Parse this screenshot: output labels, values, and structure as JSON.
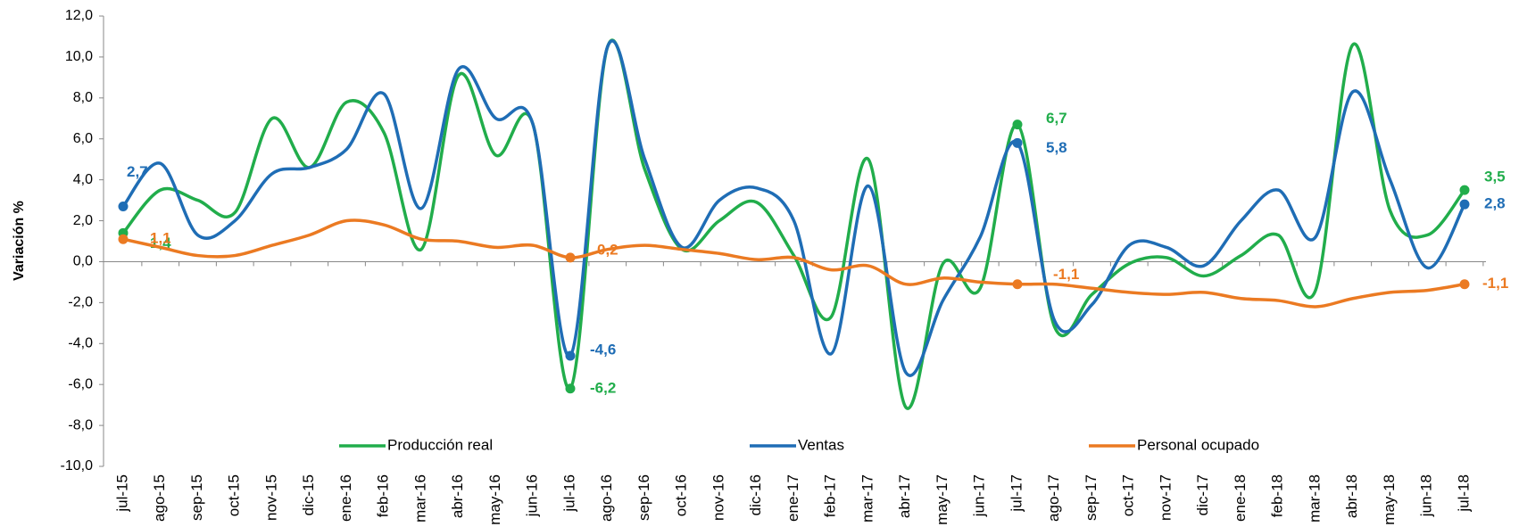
{
  "chart_data": {
    "type": "line",
    "y_label": "Variación %",
    "categories": [
      "jul-15",
      "ago-15",
      "sep-15",
      "oct-15",
      "nov-15",
      "dic-15",
      "ene-16",
      "feb-16",
      "mar-16",
      "abr-16",
      "may-16",
      "jun-16",
      "jul-16",
      "ago-16",
      "sep-16",
      "oct-16",
      "nov-16",
      "dic-16",
      "ene-17",
      "feb-17",
      "mar-17",
      "abr-17",
      "may-17",
      "jun-17",
      "jul-17",
      "ago-17",
      "sep-17",
      "oct-17",
      "nov-17",
      "dic-17",
      "ene-18",
      "feb-18",
      "mar-18",
      "abr-18",
      "may-18",
      "jun-18",
      "jul-18"
    ],
    "series": [
      {
        "name": "Producción real",
        "color": "#21ad4b",
        "values": [
          1.4,
          3.5,
          3.0,
          2.4,
          7.0,
          4.6,
          7.8,
          6.3,
          0.6,
          9.1,
          5.2,
          6.7,
          -6.2,
          10.5,
          4.5,
          0.6,
          2.0,
          2.9,
          0.3,
          -2.7,
          5.0,
          -7.1,
          -0.1,
          -1.3,
          6.7,
          -3.2,
          -1.6,
          -0.1,
          0.2,
          -0.7,
          0.3,
          1.3,
          -1.4,
          10.6,
          2.5,
          1.3,
          3.5
        ],
        "value_labels": [
          "1,4",
          null,
          null,
          null,
          null,
          null,
          null,
          null,
          null,
          null,
          null,
          null,
          "-6,2",
          null,
          null,
          null,
          null,
          null,
          null,
          null,
          null,
          null,
          null,
          null,
          "6,7",
          null,
          null,
          null,
          null,
          null,
          null,
          null,
          null,
          null,
          null,
          null,
          "3,5"
        ]
      },
      {
        "name": "Ventas",
        "color": "#1f6db5",
        "values": [
          2.7,
          4.8,
          1.3,
          2.0,
          4.3,
          4.6,
          5.5,
          8.2,
          2.6,
          9.4,
          7.0,
          6.7,
          -4.6,
          10.5,
          5.0,
          0.7,
          3.0,
          3.6,
          2.0,
          -4.5,
          3.7,
          -5.4,
          -1.9,
          1.2,
          5.8,
          -2.9,
          -2.1,
          0.8,
          0.7,
          -0.2,
          2.0,
          3.5,
          1.2,
          8.3,
          4.0,
          -0.3,
          2.8
        ],
        "value_labels": [
          "2,7",
          null,
          null,
          null,
          null,
          null,
          null,
          null,
          null,
          null,
          null,
          null,
          "-4,6",
          null,
          null,
          null,
          null,
          null,
          null,
          null,
          null,
          null,
          null,
          null,
          "5,8",
          null,
          null,
          null,
          null,
          null,
          null,
          null,
          null,
          null,
          null,
          null,
          "2,8"
        ]
      },
      {
        "name": "Personal ocupado",
        "color": "#eb7a22",
        "values": [
          1.1,
          0.7,
          0.3,
          0.3,
          0.8,
          1.3,
          2.0,
          1.8,
          1.1,
          1.0,
          0.7,
          0.8,
          0.2,
          0.6,
          0.8,
          0.6,
          0.4,
          0.1,
          0.2,
          -0.4,
          -0.2,
          -1.1,
          -0.8,
          -1.0,
          -1.1,
          -1.1,
          -1.3,
          -1.5,
          -1.6,
          -1.5,
          -1.8,
          -1.9,
          -2.2,
          -1.8,
          -1.5,
          -1.4,
          -1.1
        ],
        "value_labels": [
          "1,1",
          null,
          null,
          null,
          null,
          null,
          null,
          null,
          null,
          null,
          null,
          null,
          "0,2",
          null,
          null,
          null,
          null,
          null,
          null,
          null,
          null,
          null,
          null,
          null,
          "-1,1",
          null,
          null,
          null,
          null,
          null,
          null,
          null,
          null,
          null,
          null,
          null,
          "-1,1"
        ]
      }
    ],
    "ylim": [
      -10,
      12
    ],
    "yticks": [
      {
        "value": -10,
        "label": "-10,0"
      },
      {
        "value": -8,
        "label": "-8,0"
      },
      {
        "value": -6,
        "label": "-6,0"
      },
      {
        "value": -4,
        "label": "-4,0"
      },
      {
        "value": -2,
        "label": "-2,0"
      },
      {
        "value": 0,
        "label": "0,0"
      },
      {
        "value": 2,
        "label": "2,0"
      },
      {
        "value": 4,
        "label": "4,0"
      },
      {
        "value": 6,
        "label": "6,0"
      },
      {
        "value": 8,
        "label": "8,0"
      },
      {
        "value": 10,
        "label": "10,0"
      },
      {
        "value": 12,
        "label": "12,0"
      }
    ],
    "grid": false,
    "legend": "bottom"
  }
}
